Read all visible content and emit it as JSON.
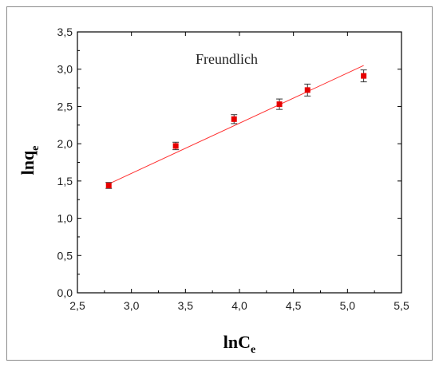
{
  "chart_data": {
    "type": "scatter",
    "title": "",
    "annotation": "Freundlich",
    "xlabel": {
      "main": "lnC",
      "sub": "e"
    },
    "ylabel": {
      "main": "lnq",
      "sub": "e"
    },
    "xlim": [
      2.5,
      5.5
    ],
    "ylim": [
      0.0,
      3.5
    ],
    "x_ticks": [
      "2,5",
      "3,0",
      "3,5",
      "4,0",
      "4,5",
      "5,0",
      "5,5"
    ],
    "y_ticks": [
      "0,0",
      "0,5",
      "1,0",
      "1,5",
      "2,0",
      "2,5",
      "3,0",
      "3,5"
    ],
    "grid": false,
    "points": [
      {
        "x": 2.79,
        "y": 1.44,
        "err": 0.04
      },
      {
        "x": 3.41,
        "y": 1.97,
        "err": 0.05
      },
      {
        "x": 3.95,
        "y": 2.33,
        "err": 0.06
      },
      {
        "x": 4.37,
        "y": 2.53,
        "err": 0.07
      },
      {
        "x": 4.63,
        "y": 2.72,
        "err": 0.08
      },
      {
        "x": 5.15,
        "y": 2.91,
        "err": 0.08
      }
    ],
    "fit_line": {
      "x": [
        2.79,
        5.15
      ],
      "y": [
        1.46,
        3.05
      ]
    },
    "colors": {
      "marker": "#e60000",
      "fit": "#ff3030",
      "axis": "#000000",
      "errorbar": "#333333"
    }
  }
}
